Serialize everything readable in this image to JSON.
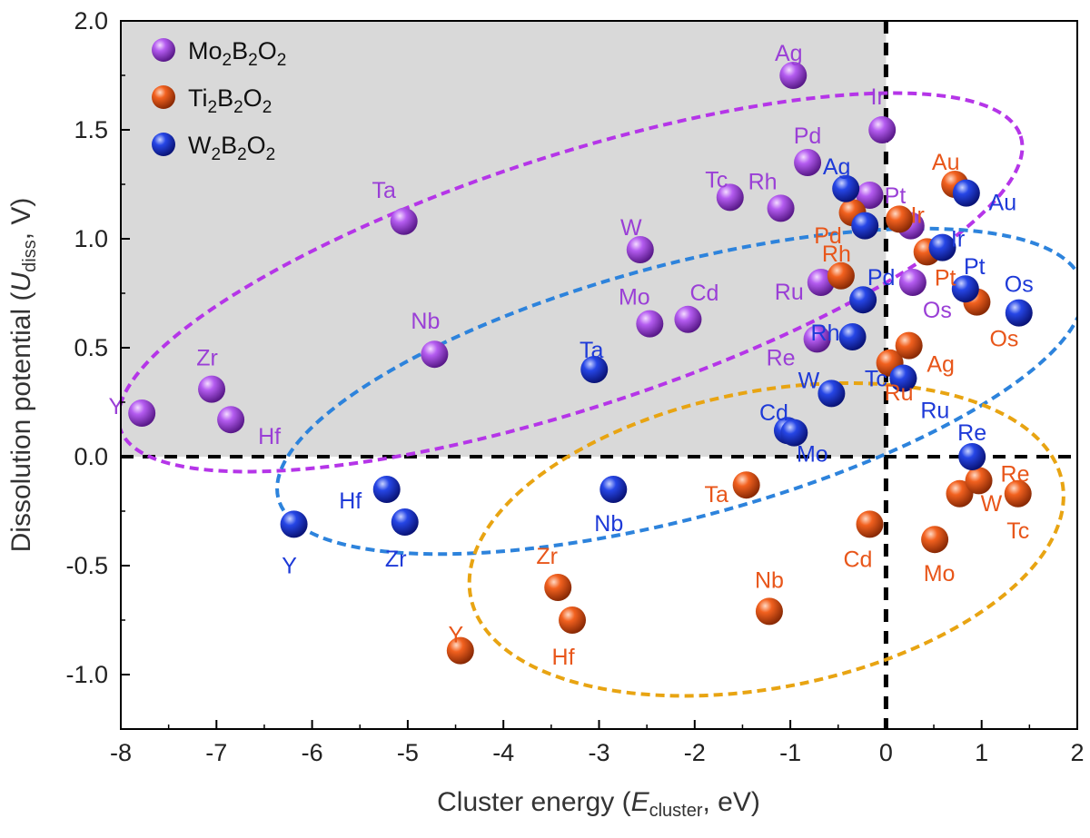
{
  "chart_data": {
    "type": "scatter",
    "x_title": {
      "main": "Cluster energy (",
      "var": "E",
      "sub": "cluster",
      "unit": ", eV)"
    },
    "y_title": {
      "main": "Dissolution potential (",
      "var": "U",
      "sub": "diss",
      "unit": ", V)"
    },
    "xlim": [
      -8,
      2
    ],
    "ylim": [
      -1.25,
      2.0
    ],
    "x_ticks": [
      -8,
      -7,
      -6,
      -5,
      -4,
      -3,
      -2,
      -1,
      0,
      1,
      2
    ],
    "x_tick_labels": [
      "-8",
      "-7",
      "-6",
      "-5",
      "-4",
      "-3",
      "-2",
      "-1",
      "0",
      "1",
      "2"
    ],
    "y_ticks": [
      -1.0,
      -0.5,
      0.0,
      0.5,
      1.0,
      1.5,
      2.0
    ],
    "y_tick_labels": [
      "-1.0",
      "-0.5",
      "0.0",
      "0.5",
      "1.0",
      "1.5",
      "2.0"
    ],
    "legend": [
      {
        "main": "Mo",
        "sub1": "2",
        "mid": "B",
        "sub2": "2",
        "end": "O",
        "sub3": "2"
      },
      {
        "main": "Ti",
        "sub1": "2",
        "mid": "B",
        "sub2": "2",
        "end": "O",
        "sub3": "2"
      },
      {
        "main": "W",
        "sub1": "2",
        "mid": "B",
        "sub2": "2",
        "end": "O",
        "sub3": "2"
      }
    ],
    "shaded_region": {
      "x": [
        -8,
        0
      ],
      "y": [
        0,
        2.0
      ],
      "color": "#d9d9d9"
    },
    "reference_lines": {
      "x": 0,
      "y": 0
    },
    "series": [
      {
        "name": "Mo2B2O2",
        "color": "#9a3fd6",
        "points": [
          {
            "label": "Y",
            "x": -7.78,
            "y": 0.2
          },
          {
            "label": "Zr",
            "x": -7.05,
            "y": 0.31
          },
          {
            "label": "Hf",
            "x": -6.85,
            "y": 0.17
          },
          {
            "label": "Nb",
            "x": -4.72,
            "y": 0.47
          },
          {
            "label": "Ta",
            "x": -5.04,
            "y": 1.08
          },
          {
            "label": "W",
            "x": -2.57,
            "y": 0.95
          },
          {
            "label": "Mo",
            "x": -2.47,
            "y": 0.61
          },
          {
            "label": "Cd",
            "x": -2.07,
            "y": 0.63
          },
          {
            "label": "Tc",
            "x": -1.63,
            "y": 1.19
          },
          {
            "label": "Rh",
            "x": -1.1,
            "y": 1.14
          },
          {
            "label": "Pd",
            "x": -0.82,
            "y": 1.35
          },
          {
            "label": "Ag",
            "x": -0.97,
            "y": 1.75
          },
          {
            "label": "Ir",
            "x": -0.04,
            "y": 1.5
          },
          {
            "label": "Ru",
            "x": -0.68,
            "y": 0.8
          },
          {
            "label": "Re",
            "x": -0.72,
            "y": 0.54
          },
          {
            "label": "Pt",
            "x": -0.17,
            "y": 1.2
          },
          {
            "label": "Os",
            "x": 0.28,
            "y": 0.8
          },
          {
            "label": "Au",
            "x": 0.26,
            "y": 1.06
          }
        ]
      },
      {
        "name": "Ti2B2O2",
        "color": "#e8561a",
        "points": [
          {
            "label": "Y",
            "x": -4.45,
            "y": -0.89
          },
          {
            "label": "Zr",
            "x": -3.43,
            "y": -0.6
          },
          {
            "label": "Hf",
            "x": -3.28,
            "y": -0.75
          },
          {
            "label": "Nb",
            "x": -1.22,
            "y": -0.71
          },
          {
            "label": "Ta",
            "x": -1.46,
            "y": -0.13
          },
          {
            "label": "Cd",
            "x": -0.17,
            "y": -0.31
          },
          {
            "label": "Pd",
            "x": -0.35,
            "y": 1.12
          },
          {
            "label": "Rh",
            "x": -0.47,
            "y": 0.83
          },
          {
            "label": "Ru",
            "x": 0.04,
            "y": 0.43
          },
          {
            "label": "Ag",
            "x": 0.24,
            "y": 0.51
          },
          {
            "label": "Ir",
            "x": 0.14,
            "y": 1.09
          },
          {
            "label": "Pt",
            "x": 0.43,
            "y": 0.94
          },
          {
            "label": "Au",
            "x": 0.72,
            "y": 1.25
          },
          {
            "label": "Os",
            "x": 0.95,
            "y": 0.71
          },
          {
            "label": "W",
            "x": 0.77,
            "y": -0.17
          },
          {
            "label": "Mo",
            "x": 0.51,
            "y": -0.38
          },
          {
            "label": "Re",
            "x": 0.97,
            "y": -0.11
          },
          {
            "label": "Tc",
            "x": 1.38,
            "y": -0.17
          }
        ]
      },
      {
        "name": "W2B2O2",
        "color": "#1e3ad8",
        "points": [
          {
            "label": "Y",
            "x": -6.19,
            "y": -0.31
          },
          {
            "label": "Hf",
            "x": -5.22,
            "y": -0.15
          },
          {
            "label": "Zr",
            "x": -5.03,
            "y": -0.3
          },
          {
            "label": "Nb",
            "x": -2.85,
            "y": -0.15
          },
          {
            "label": "Ta",
            "x": -3.05,
            "y": 0.4
          },
          {
            "label": "Cd",
            "x": -1.03,
            "y": 0.12
          },
          {
            "label": "Mo",
            "x": -0.96,
            "y": 0.11
          },
          {
            "label": "W",
            "x": -0.57,
            "y": 0.29
          },
          {
            "label": "Rh",
            "x": -0.35,
            "y": 0.55
          },
          {
            "label": "Pd",
            "x": -0.24,
            "y": 0.72
          },
          {
            "label": "Ag",
            "x": -0.42,
            "y": 1.23
          },
          {
            "label": "Pt",
            "x": -0.22,
            "y": 1.06
          },
          {
            "label": "Tc",
            "x": 0.18,
            "y": 0.36
          },
          {
            "label": "Ru",
            "x": 0.18,
            "y": 0.36
          },
          {
            "label": "Ir",
            "x": 0.59,
            "y": 0.96
          },
          {
            "label": "Au",
            "x": 0.84,
            "y": 1.21
          },
          {
            "label": "Pt",
            "x": 0.83,
            "y": 0.77
          },
          {
            "label": "Os",
            "x": 1.39,
            "y": 0.66
          },
          {
            "label": "Re",
            "x": 0.9,
            "y": 0.0
          }
        ]
      }
    ],
    "ellipses": [
      {
        "series": "Mo2B2O2",
        "color": "#b535e8",
        "center": [
          -3.3,
          0.8
        ],
        "semi_axes": [
          4.95,
          0.58
        ],
        "angle_deg": 18
      },
      {
        "series": "W2B2O2",
        "color": "#2d83dc",
        "center": [
          -2.15,
          0.3
        ],
        "semi_axes": [
          4.35,
          0.58
        ],
        "angle_deg": 15
      },
      {
        "series": "Ti2B2O2",
        "color": "#e8a412",
        "center": [
          -1.25,
          -0.38
        ],
        "semi_axes": [
          3.15,
          0.68
        ],
        "angle_deg": 11
      }
    ]
  }
}
